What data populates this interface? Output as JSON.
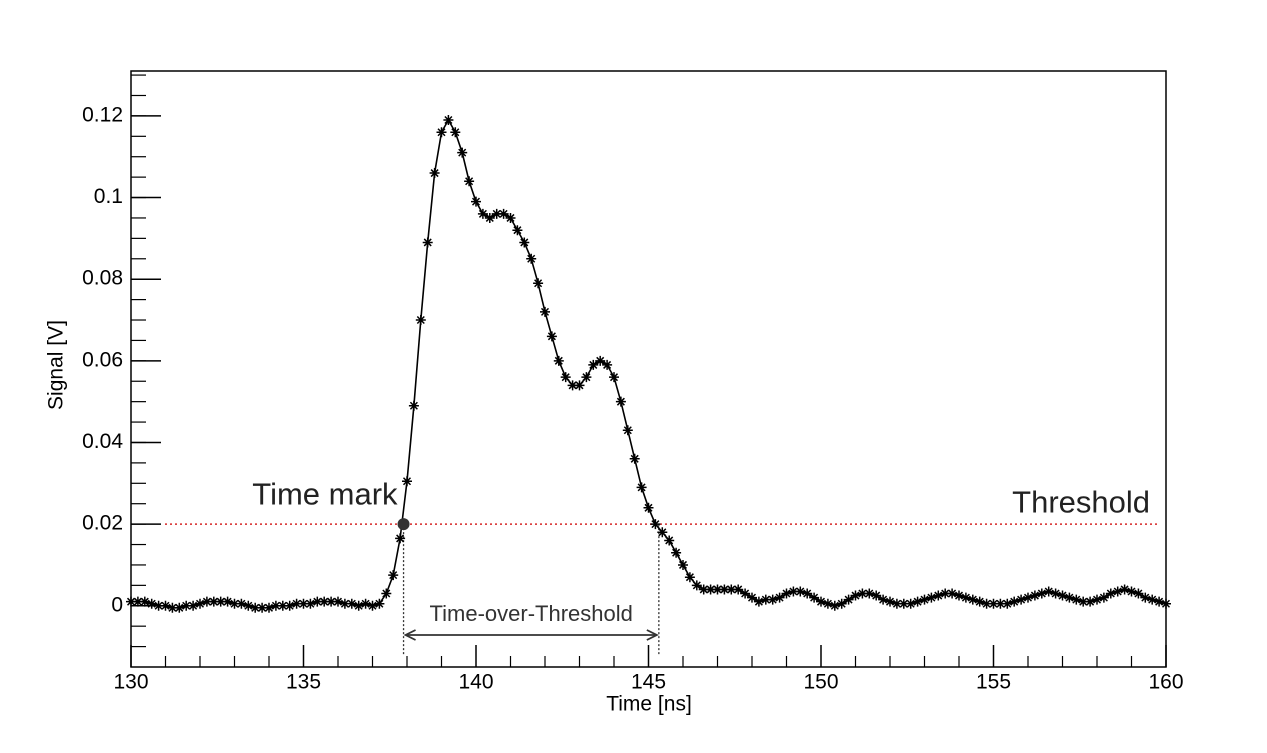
{
  "chart_data": {
    "type": "line",
    "x_label": "Time [ns]",
    "y_label": "Signal [V]",
    "x": [
      130,
      130.2,
      130.4,
      130.6,
      130.8,
      131,
      131.2,
      131.4,
      131.6,
      131.8,
      132,
      132.2,
      132.4,
      132.6,
      132.8,
      133,
      133.2,
      133.4,
      133.6,
      133.8,
      134,
      134.2,
      134.4,
      134.6,
      134.8,
      135,
      135.2,
      135.4,
      135.6,
      135.8,
      136,
      136.2,
      136.4,
      136.6,
      136.8,
      137,
      137.2,
      137.4,
      137.6,
      137.8,
      138,
      138.2,
      138.4,
      138.6,
      138.8,
      139,
      139.2,
      139.4,
      139.6,
      139.8,
      140,
      140.2,
      140.4,
      140.6,
      140.8,
      141,
      141.2,
      141.4,
      141.6,
      141.8,
      142,
      142.2,
      142.4,
      142.6,
      142.8,
      143,
      143.2,
      143.4,
      143.6,
      143.8,
      144,
      144.2,
      144.4,
      144.6,
      144.8,
      145,
      145.2,
      145.4,
      145.6,
      145.8,
      146,
      146.2,
      146.4,
      146.6,
      146.8,
      147,
      147.2,
      147.4,
      147.6,
      147.8,
      148,
      148.2,
      148.4,
      148.6,
      148.8,
      149,
      149.2,
      149.4,
      149.6,
      149.8,
      150,
      150.2,
      150.4,
      150.6,
      150.8,
      151,
      151.2,
      151.4,
      151.6,
      151.8,
      152,
      152.2,
      152.4,
      152.6,
      152.8,
      153,
      153.2,
      153.4,
      153.6,
      153.8,
      154,
      154.2,
      154.4,
      154.6,
      154.8,
      155,
      155.2,
      155.4,
      155.6,
      155.8,
      156,
      156.2,
      156.4,
      156.6,
      156.8,
      157,
      157.2,
      157.4,
      157.6,
      157.8,
      158,
      158.2,
      158.4,
      158.6,
      158.8,
      159,
      159.2,
      159.4,
      159.6,
      159.8,
      160
    ],
    "series": [
      {
        "color": "#000000",
        "values": [
          0.001,
          0.001,
          0.001,
          0.0005,
          0,
          0,
          -0.0005,
          -0.0005,
          0,
          0,
          0.0005,
          0.001,
          0.001,
          0.001,
          0.001,
          0.0005,
          0.0005,
          0,
          -0.0005,
          -0.0005,
          -0.0005,
          0,
          0,
          0,
          0.0005,
          0.0005,
          0.0005,
          0.001,
          0.001,
          0.001,
          0.001,
          0.0005,
          0.0005,
          0,
          0.0005,
          0,
          0.0005,
          0.003,
          0.0075,
          0.0165,
          0.0305,
          0.049,
          0.07,
          0.089,
          0.106,
          0.116,
          0.119,
          0.116,
          0.111,
          0.104,
          0.099,
          0.096,
          0.095,
          0.096,
          0.096,
          0.095,
          0.092,
          0.089,
          0.085,
          0.079,
          0.072,
          0.066,
          0.06,
          0.056,
          0.054,
          0.054,
          0.056,
          0.059,
          0.06,
          0.059,
          0.056,
          0.05,
          0.043,
          0.036,
          0.029,
          0.024,
          0.02,
          0.018,
          0.016,
          0.013,
          0.01,
          0.007,
          0.005,
          0.004,
          0.004,
          0.004,
          0.004,
          0.004,
          0.004,
          0.003,
          0.002,
          0.001,
          0.0015,
          0.0015,
          0.002,
          0.003,
          0.0035,
          0.0035,
          0.003,
          0.002,
          0.001,
          0.0005,
          0,
          0.0005,
          0.0015,
          0.0025,
          0.003,
          0.003,
          0.0025,
          0.0015,
          0.001,
          0.0005,
          0.0005,
          0.0005,
          0.001,
          0.0015,
          0.002,
          0.0025,
          0.003,
          0.003,
          0.0025,
          0.002,
          0.0015,
          0.001,
          0.0005,
          0.0005,
          0.0005,
          0.0005,
          0.001,
          0.0015,
          0.002,
          0.0025,
          0.003,
          0.0035,
          0.003,
          0.0025,
          0.002,
          0.0015,
          0.001,
          0.001,
          0.0015,
          0.002,
          0.003,
          0.0035,
          0.004,
          0.0035,
          0.003,
          0.002,
          0.0015,
          0.001,
          0.0005
        ]
      }
    ],
    "xlim": [
      130,
      160
    ],
    "xticks": [
      130,
      135,
      140,
      145,
      150,
      155,
      160
    ],
    "ylim": [
      -0.015,
      0.131
    ],
    "yticks": [
      0,
      0.02,
      0.04,
      0.06,
      0.08,
      0.1,
      0.12
    ],
    "threshold": {
      "value": 0.02,
      "label": "Threshold",
      "color": "#d62728"
    },
    "time_mark": {
      "x": 137.9,
      "y": 0.02,
      "label": "Time mark"
    },
    "time_over_threshold": {
      "start": 137.9,
      "end": 145.3,
      "label": "Time-over-Threshold"
    }
  }
}
